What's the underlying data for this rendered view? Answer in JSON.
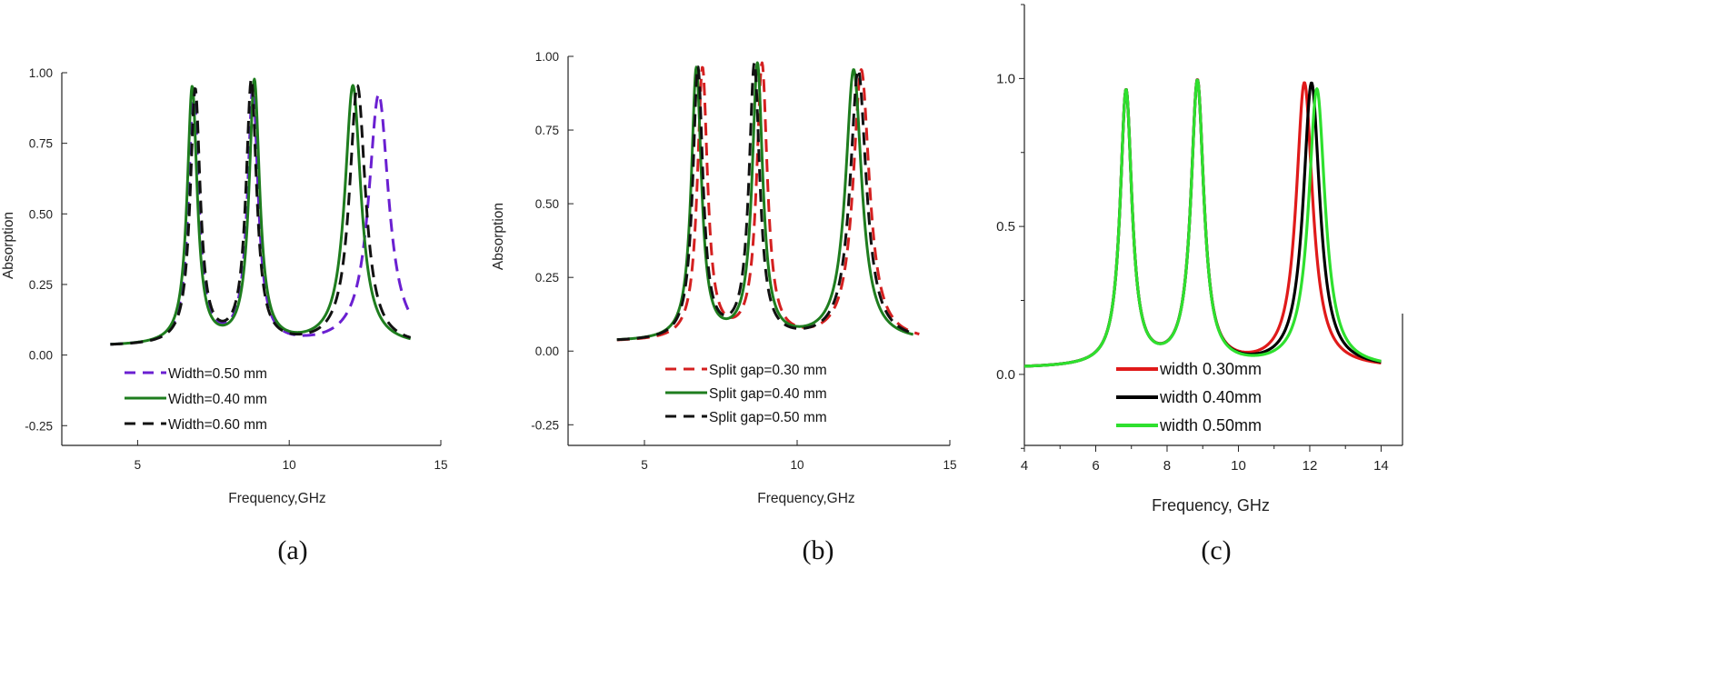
{
  "chart_data": [
    {
      "type": "line",
      "panel_label": "(a)",
      "xlabel": "Frequency,GHz",
      "ylabel": "Absorption",
      "xlim": [
        2.5,
        15
      ],
      "ylim": [
        -0.32,
        1.0
      ],
      "xticks": [
        5,
        10,
        15
      ],
      "yticks": [
        1.0,
        0.75,
        0.5,
        0.25,
        0.0,
        -0.25
      ],
      "xtick_labels": [
        "5",
        "10",
        "15"
      ],
      "ytick_labels": [
        "1.00",
        "0.75",
        "0.50",
        "0.25",
        "0.00",
        "-0.25"
      ],
      "grid": false,
      "legend_position": "bottom-left",
      "series": [
        {
          "name": "Width=0.50 mm",
          "color": "#6a1fd1",
          "dash": "dashed",
          "base": 0.03,
          "range": [
            4.1,
            14.0
          ],
          "peaks": [
            {
              "f": 6.85,
              "a": 0.93,
              "w": 0.2
            },
            {
              "f": 8.8,
              "a": 0.93,
              "w": 0.21
            },
            {
              "f": 12.95,
              "a": 0.92,
              "w": 0.4
            }
          ]
        },
        {
          "name": "Width=0.40 mm",
          "color": "#1e7d1e",
          "dash": "solid",
          "base": 0.03,
          "range": [
            4.1,
            14.0
          ],
          "peaks": [
            {
              "f": 6.8,
              "a": 0.94,
              "w": 0.2
            },
            {
              "f": 8.85,
              "a": 0.96,
              "w": 0.21
            },
            {
              "f": 12.1,
              "a": 0.95,
              "w": 0.32
            }
          ]
        },
        {
          "name": "Width=0.60 mm",
          "color": "#111111",
          "dash": "dashed",
          "base": 0.03,
          "range": [
            4.1,
            14.0
          ],
          "peaks": [
            {
              "f": 6.9,
              "a": 0.93,
              "w": 0.2
            },
            {
              "f": 8.75,
              "a": 0.96,
              "w": 0.21
            },
            {
              "f": 12.25,
              "a": 0.95,
              "w": 0.32
            }
          ]
        }
      ]
    },
    {
      "type": "line",
      "panel_label": "(b)",
      "xlabel": "Frequency,GHz",
      "ylabel": "Absorption",
      "xlim": [
        2.5,
        15
      ],
      "ylim": [
        -0.32,
        1.0
      ],
      "xticks": [
        5,
        10,
        15
      ],
      "yticks": [
        1.0,
        0.75,
        0.5,
        0.25,
        0.0,
        -0.25
      ],
      "xtick_labels": [
        "5",
        "10",
        "15"
      ],
      "ytick_labels": [
        "1.00",
        "0.75",
        "0.50",
        "0.25",
        "0.00",
        "-0.25"
      ],
      "grid": false,
      "legend_position": "bottom-center",
      "series": [
        {
          "name": "Split gap=0.30 mm",
          "color": "#d42020",
          "dash": "dashed",
          "base": 0.03,
          "range": [
            4.1,
            14.0
          ],
          "peaks": [
            {
              "f": 6.9,
              "a": 0.95,
              "w": 0.2
            },
            {
              "f": 8.85,
              "a": 0.96,
              "w": 0.21
            },
            {
              "f": 12.1,
              "a": 0.95,
              "w": 0.32
            }
          ]
        },
        {
          "name": "Split gap=0.40 mm",
          "color": "#1e7d1e",
          "dash": "solid",
          "base": 0.03,
          "range": [
            4.1,
            13.8
          ],
          "peaks": [
            {
              "f": 6.7,
              "a": 0.95,
              "w": 0.2
            },
            {
              "f": 8.7,
              "a": 0.96,
              "w": 0.21
            },
            {
              "f": 11.85,
              "a": 0.95,
              "w": 0.32
            }
          ]
        },
        {
          "name": "Split gap=0.50 mm",
          "color": "#111111",
          "dash": "dashed",
          "base": 0.03,
          "range": [
            4.1,
            13.8
          ],
          "peaks": [
            {
              "f": 6.75,
              "a": 0.95,
              "w": 0.2
            },
            {
              "f": 8.6,
              "a": 0.96,
              "w": 0.21
            },
            {
              "f": 12.0,
              "a": 0.95,
              "w": 0.32
            }
          ]
        }
      ]
    },
    {
      "type": "line",
      "panel_label": "(c)",
      "xlabel": "Frequency, GHz",
      "ylabel": "",
      "xlim": [
        4,
        14.6
      ],
      "ylim": [
        -0.24,
        1.25
      ],
      "xticks": [
        4,
        6,
        8,
        10,
        12,
        14
      ],
      "yticks": [
        1.0,
        0.5,
        0.0
      ],
      "xtick_labels": [
        "4",
        "6",
        "8",
        "10",
        "12",
        "14"
      ],
      "ytick_labels": [
        "1.0",
        "0.5",
        "0.0"
      ],
      "grid": false,
      "legend_position": "bottom-center",
      "series": [
        {
          "name": "width 0.30mm",
          "color": "#e01a1a",
          "dash": "solid",
          "base": 0.02,
          "range": [
            4.0,
            14.0
          ],
          "peaks": [
            {
              "f": 6.85,
              "a": 0.95,
              "w": 0.2
            },
            {
              "f": 8.85,
              "a": 0.98,
              "w": 0.22
            },
            {
              "f": 11.85,
              "a": 0.98,
              "w": 0.28
            }
          ]
        },
        {
          "name": "width 0.40mm",
          "color": "#000000",
          "dash": "solid",
          "base": 0.02,
          "range": [
            4.0,
            14.0
          ],
          "peaks": [
            {
              "f": 6.85,
              "a": 0.95,
              "w": 0.2
            },
            {
              "f": 8.85,
              "a": 0.98,
              "w": 0.22
            },
            {
              "f": 12.05,
              "a": 0.98,
              "w": 0.28
            }
          ]
        },
        {
          "name": "width 0.50mm",
          "color": "#2ee02e",
          "dash": "solid",
          "base": 0.02,
          "range": [
            4.0,
            14.0
          ],
          "peaks": [
            {
              "f": 6.85,
              "a": 0.95,
              "w": 0.2
            },
            {
              "f": 8.85,
              "a": 0.98,
              "w": 0.22
            },
            {
              "f": 12.2,
              "a": 0.96,
              "w": 0.28
            }
          ]
        }
      ]
    }
  ]
}
